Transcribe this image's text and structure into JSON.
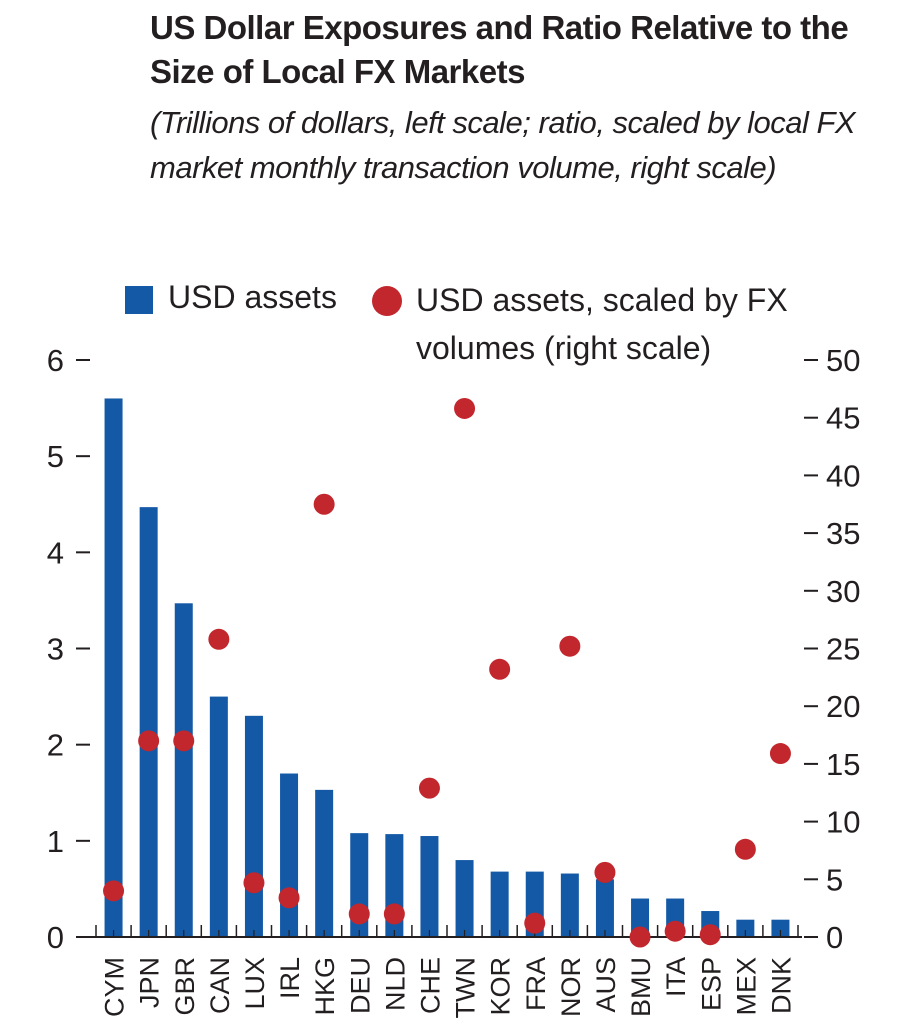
{
  "colors": {
    "bar": "#1459a6",
    "dot": "#c1272d",
    "text": "#231f20",
    "axis": "#231f20"
  },
  "chart_data": {
    "type": "bar",
    "title": "US Dollar Exposures and Ratio Relative to the Size of Local FX Markets",
    "subtitle": "(Trillions of dollars, left scale; ratio, scaled by local FX market monthly transaction volume, right scale)",
    "categories": [
      "CYM",
      "JPN",
      "GBR",
      "CAN",
      "LUX",
      "IRL",
      "HKG",
      "DEU",
      "NLD",
      "CHE",
      "TWN",
      "KOR",
      "FRA",
      "NOR",
      "AUS",
      "BMU",
      "ITA",
      "ESP",
      "MEX",
      "DNK"
    ],
    "series": [
      {
        "name": "USD assets",
        "axis": "left",
        "kind": "bar",
        "values": [
          5.6,
          4.47,
          3.47,
          2.5,
          2.3,
          1.7,
          1.53,
          1.08,
          1.07,
          1.05,
          0.8,
          0.68,
          0.68,
          0.66,
          0.6,
          0.4,
          0.4,
          0.27,
          0.18,
          0.18
        ]
      },
      {
        "name": "USD assets, scaled by FX volumes (right scale)",
        "axis": "right",
        "kind": "scatter",
        "values": [
          4.0,
          17.0,
          17.0,
          25.8,
          4.7,
          3.4,
          37.5,
          2.0,
          2.0,
          12.9,
          45.8,
          23.2,
          1.2,
          25.2,
          5.6,
          0.0,
          0.5,
          0.2,
          7.6,
          15.9
        ]
      }
    ],
    "ylim_left": [
      0,
      6
    ],
    "ylim_right": [
      0,
      50
    ],
    "yticks_left": [
      "0",
      "1",
      "2",
      "3",
      "4",
      "5",
      "6"
    ],
    "yticks_right": [
      "0",
      "5",
      "10",
      "15",
      "20",
      "25",
      "30",
      "35",
      "40",
      "45",
      "50"
    ],
    "legend": {
      "bar_label": "USD assets",
      "dot_label": "USD assets, scaled by FX volumes (right scale)",
      "placement": "top"
    }
  }
}
